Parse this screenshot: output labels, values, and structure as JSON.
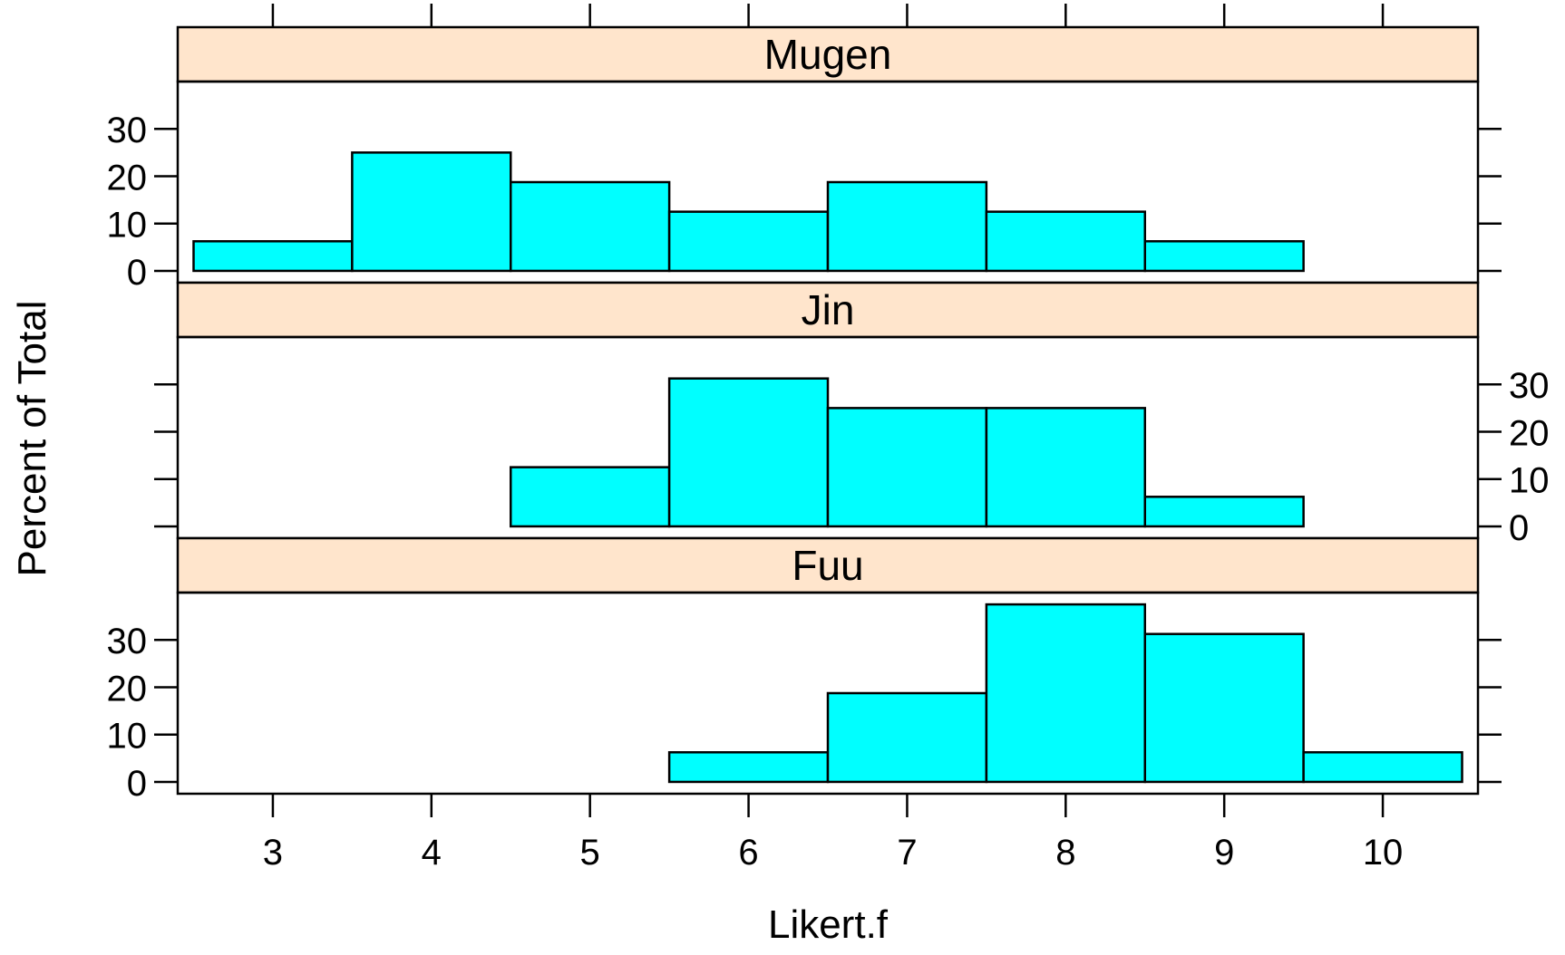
{
  "chart_data": {
    "type": "bar",
    "xlabel": "Likert.f",
    "ylabel": "Percent of Total",
    "xlim": [
      2.4,
      10.6
    ],
    "ylim": [
      -2.5,
      40
    ],
    "x_ticks": [
      3,
      4,
      5,
      6,
      7,
      8,
      9,
      10
    ],
    "y_ticks": [
      0,
      10,
      20,
      30
    ],
    "bin_width": 1,
    "colors": {
      "bar_fill": "#00FFFF",
      "strip_fill": "#FFE5CC",
      "stroke": "#000000"
    },
    "panels": [
      {
        "name": "Mugen",
        "y_tick_side": "left",
        "x": [
          3,
          4,
          5,
          6,
          7,
          8,
          9,
          10
        ],
        "values": [
          6.25,
          25,
          18.75,
          12.5,
          18.75,
          12.5,
          6.25,
          0
        ]
      },
      {
        "name": "Jin",
        "y_tick_side": "right",
        "x": [
          3,
          4,
          5,
          6,
          7,
          8,
          9,
          10
        ],
        "values": [
          0,
          0,
          12.5,
          31.25,
          25,
          25,
          6.25,
          0
        ]
      },
      {
        "name": "Fuu",
        "y_tick_side": "left",
        "x": [
          3,
          4,
          5,
          6,
          7,
          8,
          9,
          10
        ],
        "values": [
          0,
          0,
          0,
          6.25,
          18.75,
          37.5,
          31.25,
          6.25
        ]
      }
    ]
  }
}
